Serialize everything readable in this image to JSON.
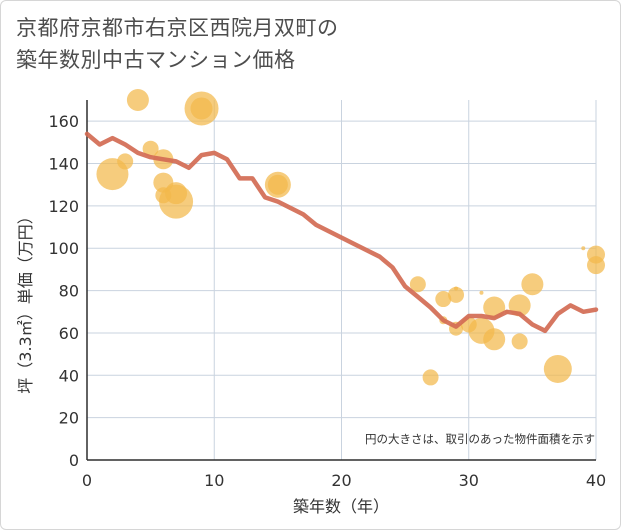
{
  "title": {
    "line1": "京都府京都市右京区西院月双町の",
    "line2": "築年数別中古マンション価格"
  },
  "colors": {
    "bubble": "#f2b84b",
    "line": "#d26b54",
    "grid": "#c9d3df",
    "text": "#333333"
  },
  "chart_data": {
    "type": "scatter",
    "xlabel": "築年数（年）",
    "ylabel": "坪（3.3㎡）単価（万円）",
    "xlim": [
      0,
      40
    ],
    "ylim": [
      0,
      170
    ],
    "x_ticks": [
      "0",
      "10",
      "20",
      "30",
      "40"
    ],
    "y_ticks": [
      "0",
      "20",
      "40",
      "60",
      "80",
      "100",
      "120",
      "140",
      "160"
    ],
    "note": "円の大きさは、取引のあった物件面積を示す",
    "bubbles": [
      {
        "x": 2,
        "y": 135,
        "size": 16
      },
      {
        "x": 3,
        "y": 141,
        "size": 8
      },
      {
        "x": 4,
        "y": 170,
        "size": 11
      },
      {
        "x": 5,
        "y": 147,
        "size": 8
      },
      {
        "x": 6,
        "y": 142,
        "size": 10
      },
      {
        "x": 6,
        "y": 131,
        "size": 10
      },
      {
        "x": 6,
        "y": 125,
        "size": 8
      },
      {
        "x": 7,
        "y": 126,
        "size": 11
      },
      {
        "x": 7,
        "y": 122,
        "size": 17
      },
      {
        "x": 9,
        "y": 166,
        "size": 17
      },
      {
        "x": 9,
        "y": 166,
        "size": 11
      },
      {
        "x": 15,
        "y": 130,
        "size": 13
      },
      {
        "x": 15,
        "y": 130,
        "size": 10
      },
      {
        "x": 26,
        "y": 83,
        "size": 8
      },
      {
        "x": 27,
        "y": 39,
        "size": 8
      },
      {
        "x": 28,
        "y": 76,
        "size": 8
      },
      {
        "x": 28,
        "y": 66,
        "size": 4
      },
      {
        "x": 29,
        "y": 78,
        "size": 8
      },
      {
        "x": 29,
        "y": 62,
        "size": 7
      },
      {
        "x": 29,
        "y": 81,
        "size": 2
      },
      {
        "x": 30,
        "y": 64,
        "size": 8
      },
      {
        "x": 31,
        "y": 79,
        "size": 2
      },
      {
        "x": 31,
        "y": 61,
        "size": 13
      },
      {
        "x": 32,
        "y": 72,
        "size": 11
      },
      {
        "x": 32,
        "y": 57,
        "size": 11
      },
      {
        "x": 33,
        "y": 70,
        "size": 2
      },
      {
        "x": 34,
        "y": 73,
        "size": 11
      },
      {
        "x": 34,
        "y": 56,
        "size": 8
      },
      {
        "x": 35,
        "y": 83,
        "size": 11
      },
      {
        "x": 37,
        "y": 43,
        "size": 14
      },
      {
        "x": 39,
        "y": 100,
        "size": 2
      },
      {
        "x": 40,
        "y": 97,
        "size": 9
      },
      {
        "x": 40,
        "y": 92,
        "size": 9
      }
    ],
    "series": [
      {
        "x": [
          0,
          1,
          2,
          3,
          4,
          5,
          6,
          7,
          8,
          9,
          10,
          11,
          12,
          13,
          14,
          15,
          16,
          17,
          18,
          19,
          20,
          21,
          22,
          23,
          24,
          25,
          26,
          27,
          28,
          29,
          30,
          31,
          32,
          33,
          34,
          35,
          36,
          37,
          38,
          39,
          40
        ],
        "y": [
          154,
          149,
          152,
          149,
          145,
          143,
          142,
          141,
          138,
          144,
          145,
          142,
          133,
          133,
          124,
          122,
          119,
          116,
          111,
          108,
          105,
          102,
          99,
          96,
          91,
          82,
          77,
          72,
          66,
          63,
          68,
          68,
          67,
          70,
          69,
          64,
          61,
          69,
          73,
          70,
          71
        ]
      }
    ]
  }
}
